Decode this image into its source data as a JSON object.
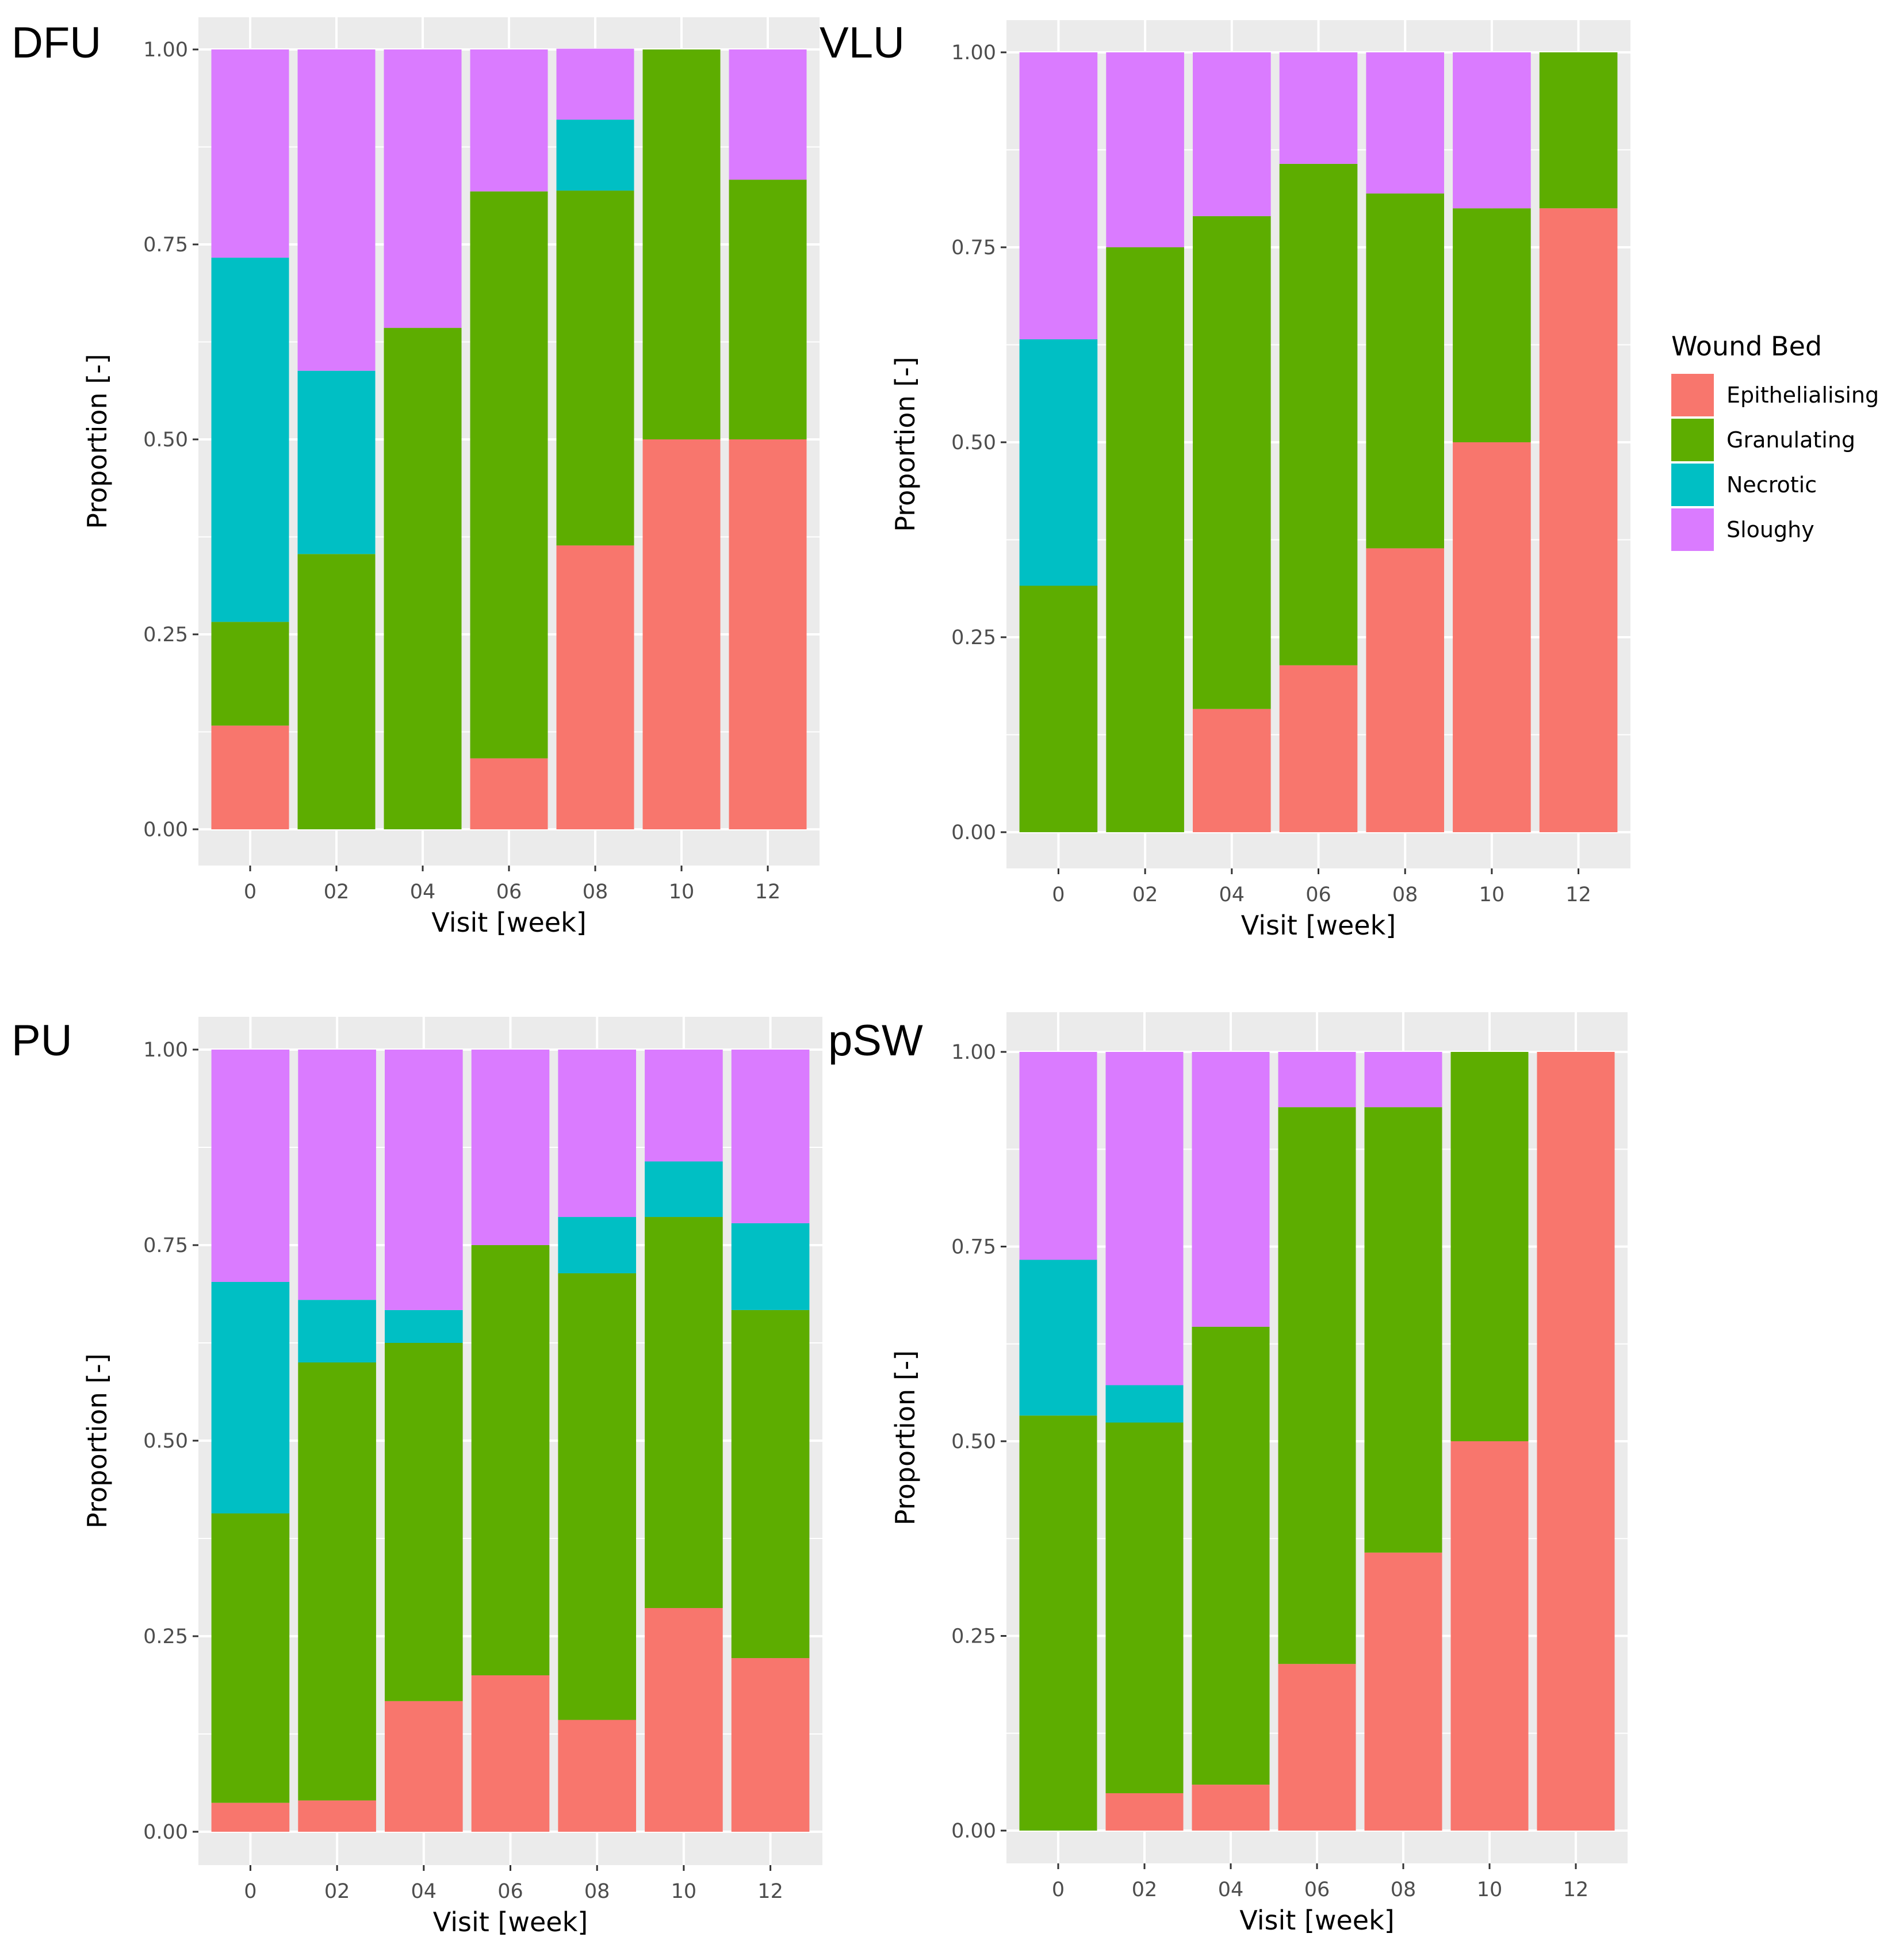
{
  "legend": {
    "title": "Wound Bed",
    "items": [
      {
        "label": "Epithelialising",
        "color": "#F8766D"
      },
      {
        "label": "Granulating",
        "color": "#5DAD00"
      },
      {
        "label": "Necrotic",
        "color": "#00BFC4"
      },
      {
        "label": "Sloughy",
        "color": "#DA7BFF"
      }
    ]
  },
  "colors": {
    "panel_background": "#EBEBEB",
    "gridline": "#FFFFFF",
    "tick_text": "#4D4D4D"
  },
  "chart_data": [
    {
      "type": "bar",
      "stacked": "proportion",
      "title": "DFU",
      "xlabel": "Visit [week]",
      "ylabel": "Proportion [-]",
      "ylim": [
        0,
        1
      ],
      "yticks": [
        "0.00",
        "0.25",
        "0.50",
        "0.75",
        "1.00"
      ],
      "categories": [
        "0",
        "02",
        "04",
        "06",
        "08",
        "10",
        "12"
      ],
      "series": [
        {
          "name": "Epithelialising",
          "values": [
            0.133,
            0.0,
            0.0,
            0.091,
            0.364,
            0.5,
            0.5
          ]
        },
        {
          "name": "Granulating",
          "values": [
            0.133,
            0.353,
            0.643,
            0.727,
            0.455,
            0.5,
            0.333
          ]
        },
        {
          "name": "Necrotic",
          "values": [
            0.467,
            0.235,
            0.0,
            0.0,
            0.091,
            0.0,
            0.0
          ]
        },
        {
          "name": "Sloughy",
          "values": [
            0.267,
            0.412,
            0.357,
            0.182,
            0.091,
            0.0,
            0.167
          ]
        }
      ]
    },
    {
      "type": "bar",
      "stacked": "proportion",
      "title": "VLU",
      "xlabel": "Visit [week]",
      "ylabel": "Proportion [-]",
      "ylim": [
        0,
        1
      ],
      "yticks": [
        "0.00",
        "0.25",
        "0.50",
        "0.75",
        "1.00"
      ],
      "categories": [
        "0",
        "02",
        "04",
        "06",
        "08",
        "10",
        "12"
      ],
      "series": [
        {
          "name": "Epithelialising",
          "values": [
            0.0,
            0.0,
            0.158,
            0.214,
            0.364,
            0.5,
            0.8
          ]
        },
        {
          "name": "Granulating",
          "values": [
            0.316,
            0.75,
            0.632,
            0.643,
            0.455,
            0.3,
            0.2
          ]
        },
        {
          "name": "Necrotic",
          "values": [
            0.316,
            0.0,
            0.0,
            0.0,
            0.0,
            0.0,
            0.0
          ]
        },
        {
          "name": "Sloughy",
          "values": [
            0.368,
            0.25,
            0.21,
            0.143,
            0.181,
            0.2,
            0.0
          ]
        }
      ]
    },
    {
      "type": "bar",
      "stacked": "proportion",
      "title": "PU",
      "xlabel": "Visit [week]",
      "ylabel": "Proportion [-]",
      "ylim": [
        0,
        1
      ],
      "yticks": [
        "0.00",
        "0.25",
        "0.50",
        "0.75",
        "1.00"
      ],
      "categories": [
        "0",
        "02",
        "04",
        "06",
        "08",
        "10",
        "12"
      ],
      "series": [
        {
          "name": "Epithelialising",
          "values": [
            0.037,
            0.04,
            0.167,
            0.2,
            0.143,
            0.286,
            0.222
          ]
        },
        {
          "name": "Granulating",
          "values": [
            0.37,
            0.56,
            0.458,
            0.55,
            0.571,
            0.5,
            0.445
          ]
        },
        {
          "name": "Necrotic",
          "values": [
            0.296,
            0.08,
            0.042,
            0.0,
            0.072,
            0.071,
            0.111
          ]
        },
        {
          "name": "Sloughy",
          "values": [
            0.297,
            0.32,
            0.333,
            0.25,
            0.214,
            0.143,
            0.222
          ]
        }
      ]
    },
    {
      "type": "bar",
      "stacked": "proportion",
      "title": "pSW",
      "xlabel": "Visit [week]",
      "ylabel": "Proportion [-]",
      "ylim": [
        0,
        1
      ],
      "yticks": [
        "0.00",
        "0.25",
        "0.50",
        "0.75",
        "1.00"
      ],
      "categories": [
        "0",
        "02",
        "04",
        "06",
        "08",
        "10",
        "12"
      ],
      "series": [
        {
          "name": "Epithelialising",
          "values": [
            0.0,
            0.048,
            0.059,
            0.214,
            0.357,
            0.5,
            1.0
          ]
        },
        {
          "name": "Granulating",
          "values": [
            0.533,
            0.476,
            0.588,
            0.715,
            0.572,
            0.5,
            0.0
          ]
        },
        {
          "name": "Necrotic",
          "values": [
            0.2,
            0.048,
            0.0,
            0.0,
            0.0,
            0.0,
            0.0
          ]
        },
        {
          "name": "Sloughy",
          "values": [
            0.267,
            0.428,
            0.353,
            0.071,
            0.071,
            0.0,
            0.0
          ]
        }
      ]
    }
  ]
}
